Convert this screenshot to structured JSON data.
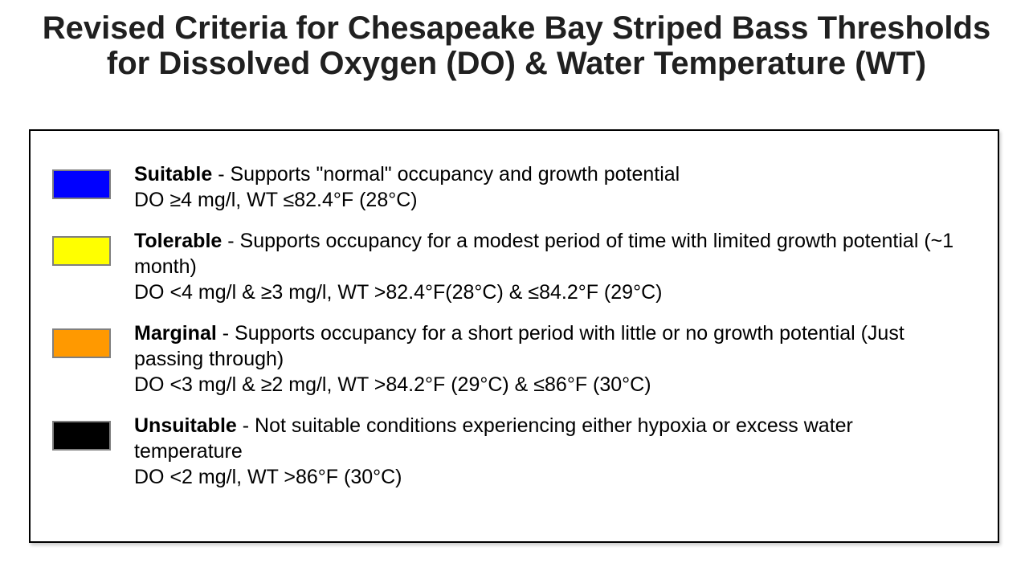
{
  "page": {
    "title_line1": "Revised Criteria for Chesapeake Bay Striped Bass Thresholds",
    "title_line2": "for Dissolved Oxygen (DO) & Water Temperature (WT)"
  },
  "legend": {
    "swatch_border_color": "#808080",
    "items": [
      {
        "term": "Suitable",
        "color_name": "blue",
        "color": "#0000ff",
        "description": " - Supports \"normal\" occupancy and growth potential",
        "criteria": "DO ≥4 mg/l, WT ≤82.4°F (28°C)"
      },
      {
        "term": "Tolerable",
        "color_name": "yellow",
        "color": "#ffff00",
        "description": " - Supports occupancy for a modest period of time with limited growth potential (~1 month)",
        "criteria": "DO <4 mg/l & ≥3 mg/l, WT >82.4°F(28°C) & ≤84.2°F (29°C)"
      },
      {
        "term": "Marginal",
        "color_name": "orange",
        "color": "#ff9900",
        "description": " - Supports occupancy for a short period with little or no growth potential (Just passing through)",
        "criteria": "DO <3 mg/l & ≥2 mg/l, WT >84.2°F (29°C) & ≤86°F (30°C)"
      },
      {
        "term": "Unsuitable",
        "color_name": "black",
        "color": "#000000",
        "description": " - Not suitable conditions experiencing either hypoxia or excess water temperature",
        "criteria": "DO <2 mg/l, WT >86°F (30°C)"
      }
    ]
  }
}
